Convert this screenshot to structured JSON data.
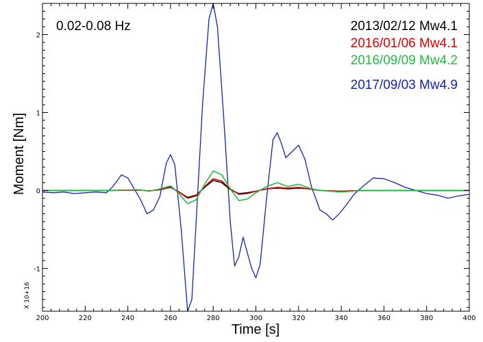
{
  "chart_data": {
    "type": "line",
    "band_label": "0.02-0.08 Hz",
    "xlabel": "Time [s]",
    "ylabel": "Moment [Nm]",
    "y_multiplier": "X 10+16",
    "xlim": [
      200,
      400
    ],
    "ylim": [
      -1.55,
      2.4
    ],
    "x_ticks": [
      200,
      220,
      240,
      260,
      280,
      300,
      320,
      340,
      360,
      380,
      400
    ],
    "y_ticks": [
      -1,
      0,
      1,
      2
    ],
    "grid": false,
    "legend_position": "top-right",
    "series": [
      {
        "name": "2013/02/12 Mw4.1",
        "color": "#000000",
        "points": [
          [
            200,
            0
          ],
          [
            230,
            0
          ],
          [
            245,
            0.005
          ],
          [
            250,
            -0.005
          ],
          [
            255,
            0.01
          ],
          [
            260,
            0.04
          ],
          [
            264,
            -0.02
          ],
          [
            268,
            -0.09
          ],
          [
            272,
            -0.06
          ],
          [
            276,
            0.04
          ],
          [
            280,
            0.13
          ],
          [
            284,
            0.1
          ],
          [
            288,
            0.01
          ],
          [
            292,
            -0.04
          ],
          [
            296,
            -0.03
          ],
          [
            300,
            -0.01
          ],
          [
            305,
            0.02
          ],
          [
            310,
            0.03
          ],
          [
            315,
            0.02
          ],
          [
            320,
            0.03
          ],
          [
            325,
            0.02
          ],
          [
            330,
            0
          ],
          [
            340,
            -0.01
          ],
          [
            345,
            -0.005
          ],
          [
            350,
            0
          ],
          [
            400,
            0
          ]
        ]
      },
      {
        "name": "2016/01/06 Mw4.1",
        "color": "#dd0000",
        "points": [
          [
            200,
            0
          ],
          [
            230,
            0
          ],
          [
            245,
            0.005
          ],
          [
            250,
            -0.005
          ],
          [
            255,
            0.01
          ],
          [
            260,
            0.045
          ],
          [
            264,
            -0.02
          ],
          [
            268,
            -0.1
          ],
          [
            272,
            -0.07
          ],
          [
            276,
            0.05
          ],
          [
            280,
            0.15
          ],
          [
            284,
            0.12
          ],
          [
            288,
            0.02
          ],
          [
            292,
            -0.05
          ],
          [
            296,
            -0.04
          ],
          [
            300,
            -0.01
          ],
          [
            305,
            0.02
          ],
          [
            310,
            0.04
          ],
          [
            315,
            0.03
          ],
          [
            320,
            0.04
          ],
          [
            325,
            0.02
          ],
          [
            330,
            0
          ],
          [
            340,
            -0.01
          ],
          [
            345,
            -0.005
          ],
          [
            350,
            0
          ],
          [
            400,
            0
          ]
        ]
      },
      {
        "name": "2016/09/09 Mw4.2",
        "color": "#22bb44",
        "points": [
          [
            200,
            0
          ],
          [
            230,
            0
          ],
          [
            245,
            0.01
          ],
          [
            250,
            -0.01
          ],
          [
            255,
            0.02
          ],
          [
            260,
            0.06
          ],
          [
            264,
            -0.04
          ],
          [
            268,
            -0.17
          ],
          [
            272,
            -0.12
          ],
          [
            276,
            0.08
          ],
          [
            280,
            0.25
          ],
          [
            284,
            0.2
          ],
          [
            288,
            0.02
          ],
          [
            292,
            -0.13
          ],
          [
            296,
            -0.11
          ],
          [
            300,
            -0.03
          ],
          [
            305,
            0.05
          ],
          [
            310,
            0.1
          ],
          [
            315,
            0.05
          ],
          [
            320,
            0.08
          ],
          [
            325,
            0.03
          ],
          [
            330,
            0
          ],
          [
            340,
            -0.02
          ],
          [
            345,
            -0.01
          ],
          [
            350,
            0
          ],
          [
            400,
            0
          ]
        ]
      },
      {
        "name": "2017/09/03 Mw4.9",
        "color": "#1122bb",
        "points": [
          [
            200,
            -0.02
          ],
          [
            205,
            -0.03
          ],
          [
            210,
            -0.02
          ],
          [
            215,
            -0.04
          ],
          [
            220,
            -0.03
          ],
          [
            225,
            -0.02
          ],
          [
            230,
            -0.03
          ],
          [
            233,
            0.05
          ],
          [
            237,
            0.2
          ],
          [
            240,
            0.16
          ],
          [
            243,
            0.02
          ],
          [
            246,
            -0.12
          ],
          [
            249,
            -0.3
          ],
          [
            252,
            -0.25
          ],
          [
            255,
            -0.08
          ],
          [
            258,
            0.35
          ],
          [
            260,
            0.46
          ],
          [
            262,
            0.33
          ],
          [
            265,
            -0.5
          ],
          [
            268,
            -1.55
          ],
          [
            270,
            -1.4
          ],
          [
            272,
            -0.4
          ],
          [
            275,
            1.1
          ],
          [
            278,
            2.2
          ],
          [
            280,
            2.4
          ],
          [
            282,
            2.1
          ],
          [
            285,
            0.9
          ],
          [
            288,
            -0.4
          ],
          [
            290,
            -0.97
          ],
          [
            292,
            -0.85
          ],
          [
            294,
            -0.6
          ],
          [
            296,
            -0.8
          ],
          [
            298,
            -1.0
          ],
          [
            300,
            -1.12
          ],
          [
            302,
            -0.95
          ],
          [
            305,
            -0.1
          ],
          [
            308,
            0.65
          ],
          [
            310,
            0.74
          ],
          [
            312,
            0.6
          ],
          [
            314,
            0.42
          ],
          [
            317,
            0.5
          ],
          [
            320,
            0.58
          ],
          [
            323,
            0.4
          ],
          [
            326,
            0.05
          ],
          [
            330,
            -0.25
          ],
          [
            333,
            -0.3
          ],
          [
            336,
            -0.38
          ],
          [
            339,
            -0.3
          ],
          [
            342,
            -0.2
          ],
          [
            346,
            -0.05
          ],
          [
            350,
            0.05
          ],
          [
            355,
            0.16
          ],
          [
            360,
            0.15
          ],
          [
            365,
            0.1
          ],
          [
            370,
            0.04
          ],
          [
            375,
            0
          ],
          [
            380,
            -0.04
          ],
          [
            385,
            -0.06
          ],
          [
            390,
            -0.1
          ],
          [
            395,
            -0.07
          ],
          [
            400,
            -0.05
          ]
        ]
      }
    ]
  }
}
